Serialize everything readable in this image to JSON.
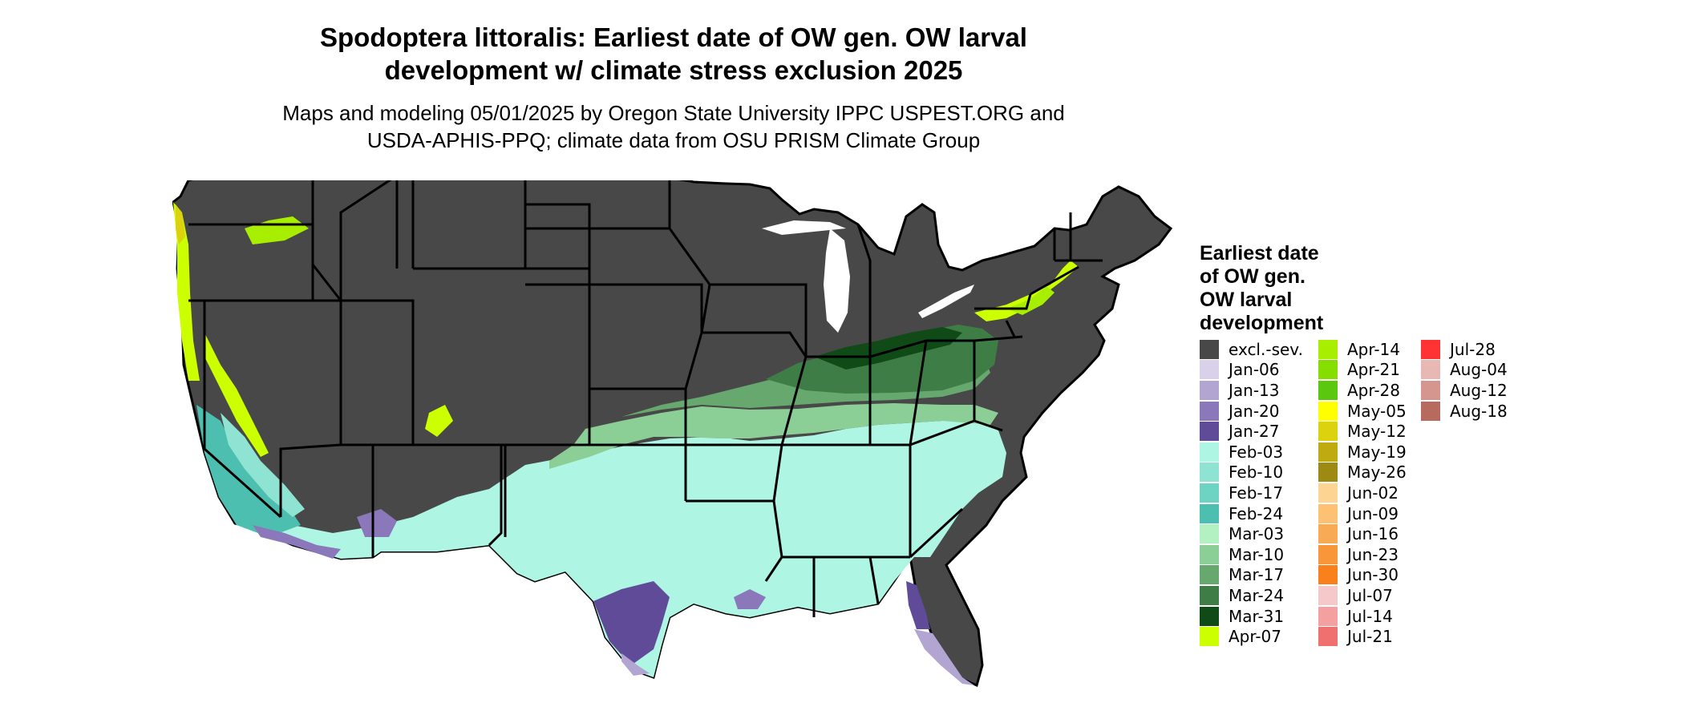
{
  "header": {
    "title_line1": "Spodoptera littoralis: Earliest date of OW gen. OW larval",
    "title_line2": "development w/ climate stress exclusion 2025",
    "subtitle_line1": "Maps and modeling 05/01/2025 by Oregon State University IPPC USPEST.ORG and",
    "subtitle_line2": "USDA-APHIS-PPQ; climate data from OSU PRISM Climate Group"
  },
  "map": {
    "region": "Contiguous United States",
    "background_color": "#484848",
    "border_color": "#000000"
  },
  "legend": {
    "title_lines": [
      "Earliest date",
      "of OW gen.",
      "OW larval",
      "development"
    ],
    "columns": [
      [
        {
          "label": "excl.-sev.",
          "color": "#484848"
        },
        {
          "label": "Jan-06",
          "color": "#d9d0ea"
        },
        {
          "label": "Jan-13",
          "color": "#b2a5d2"
        },
        {
          "label": "Jan-20",
          "color": "#8a78bb"
        },
        {
          "label": "Jan-27",
          "color": "#5f4b98"
        },
        {
          "label": "Feb-03",
          "color": "#aff5e3"
        },
        {
          "label": "Feb-10",
          "color": "#8ee3d3"
        },
        {
          "label": "Feb-17",
          "color": "#6dd3c2"
        },
        {
          "label": "Feb-24",
          "color": "#4dbfb0"
        },
        {
          "label": "Mar-03",
          "color": "#b3f1c2"
        },
        {
          "label": "Mar-10",
          "color": "#8ccf96"
        },
        {
          "label": "Mar-17",
          "color": "#66a86d"
        },
        {
          "label": "Mar-24",
          "color": "#3f7d46"
        },
        {
          "label": "Mar-31",
          "color": "#0f4a17"
        },
        {
          "label": "Apr-07",
          "color": "#ccff00"
        }
      ],
      [
        {
          "label": "Apr-14",
          "color": "#a8ee00"
        },
        {
          "label": "Apr-21",
          "color": "#86dd00"
        },
        {
          "label": "Apr-28",
          "color": "#5bc80f"
        },
        {
          "label": "May-05",
          "color": "#ffff00"
        },
        {
          "label": "May-12",
          "color": "#dcd20e"
        },
        {
          "label": "May-19",
          "color": "#bfaa11"
        },
        {
          "label": "May-26",
          "color": "#9c8a12"
        },
        {
          "label": "Jun-02",
          "color": "#fdd491"
        },
        {
          "label": "Jun-09",
          "color": "#fdc174"
        },
        {
          "label": "Jun-16",
          "color": "#f9aa55"
        },
        {
          "label": "Jun-23",
          "color": "#f9963a"
        },
        {
          "label": "Jun-30",
          "color": "#f9801b"
        },
        {
          "label": "Jul-07",
          "color": "#f5c9c9"
        },
        {
          "label": "Jul-14",
          "color": "#f5a0a0"
        },
        {
          "label": "Jul-21",
          "color": "#f07070"
        }
      ],
      [
        {
          "label": "Jul-28",
          "color": "#ff3333"
        },
        {
          "label": "Aug-04",
          "color": "#e8b9b4"
        },
        {
          "label": "Aug-12",
          "color": "#d4968e"
        },
        {
          "label": "Aug-18",
          "color": "#b86a5e"
        }
      ]
    ]
  }
}
